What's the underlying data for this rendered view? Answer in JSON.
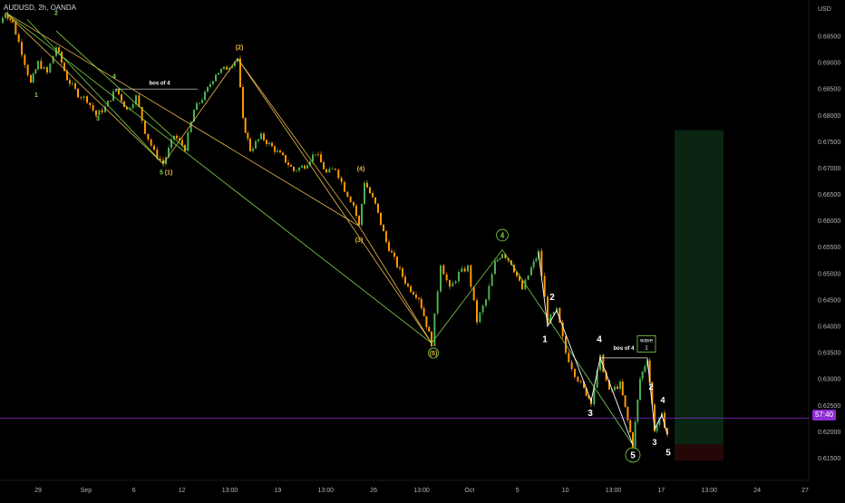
{
  "symbol": "AUDUSD, 2h, OANDA",
  "currency": "USD",
  "current_price_label": "57:40",
  "colors": {
    "background": "#000000",
    "bull": "#4caf50",
    "bear": "#ff9800",
    "motive": "#e8b84a",
    "corrective": "#7ed348",
    "subwave": "#ffffff",
    "price_line": "#8e2bd6",
    "target_zone": "#0b2a14",
    "stop_zone": "#2a0808"
  },
  "chart_data": {
    "type": "candlestick",
    "y_axis": {
      "side": "right",
      "range": [
        0.6125,
        0.7005
      ],
      "ticks": [
        "0.69500",
        "0.69000",
        "0.68500",
        "0.68000",
        "0.67500",
        "0.67000",
        "0.66500",
        "0.66000",
        "0.65500",
        "0.65000",
        "0.64500",
        "0.64000",
        "0.63500",
        "0.63000",
        "0.62500",
        "0.62000",
        "0.61500"
      ]
    },
    "x_axis": {
      "ticks": [
        "29",
        "Sep",
        "6",
        "12",
        "13:00",
        "19",
        "13:00",
        "26",
        "13:00",
        "Oct",
        "5",
        "10",
        "13:00",
        "17",
        "13:00",
        "24",
        "27"
      ]
    },
    "grid": false,
    "path": [
      {
        "t": 0,
        "p": 0.6975
      },
      {
        "t": 6,
        "p": 0.6995
      },
      {
        "t": 14,
        "p": 0.6975
      },
      {
        "t": 24,
        "p": 0.692
      },
      {
        "t": 34,
        "p": 0.686
      },
      {
        "t": 42,
        "p": 0.69
      },
      {
        "t": 52,
        "p": 0.688
      },
      {
        "t": 62,
        "p": 0.693
      },
      {
        "t": 74,
        "p": 0.687
      },
      {
        "t": 86,
        "p": 0.684
      },
      {
        "t": 96,
        "p": 0.683
      },
      {
        "t": 106,
        "p": 0.68
      },
      {
        "t": 116,
        "p": 0.6815
      },
      {
        "t": 128,
        "p": 0.685
      },
      {
        "t": 140,
        "p": 0.681
      },
      {
        "t": 150,
        "p": 0.6835
      },
      {
        "t": 160,
        "p": 0.677
      },
      {
        "t": 170,
        "p": 0.673
      },
      {
        "t": 180,
        "p": 0.6708
      },
      {
        "t": 192,
        "p": 0.6762
      },
      {
        "t": 204,
        "p": 0.6738
      },
      {
        "t": 214,
        "p": 0.681
      },
      {
        "t": 226,
        "p": 0.684
      },
      {
        "t": 238,
        "p": 0.688
      },
      {
        "t": 250,
        "p": 0.689
      },
      {
        "t": 262,
        "p": 0.6908
      },
      {
        "t": 268,
        "p": 0.679
      },
      {
        "t": 276,
        "p": 0.6735
      },
      {
        "t": 288,
        "p": 0.676
      },
      {
        "t": 300,
        "p": 0.674
      },
      {
        "t": 312,
        "p": 0.672
      },
      {
        "t": 324,
        "p": 0.6695
      },
      {
        "t": 336,
        "p": 0.6705
      },
      {
        "t": 348,
        "p": 0.673
      },
      {
        "t": 360,
        "p": 0.669
      },
      {
        "t": 370,
        "p": 0.67
      },
      {
        "t": 380,
        "p": 0.666
      },
      {
        "t": 390,
        "p": 0.663
      },
      {
        "t": 396,
        "p": 0.659
      },
      {
        "t": 402,
        "p": 0.6675
      },
      {
        "t": 414,
        "p": 0.663
      },
      {
        "t": 426,
        "p": 0.656
      },
      {
        "t": 438,
        "p": 0.6515
      },
      {
        "t": 450,
        "p": 0.6475
      },
      {
        "t": 462,
        "p": 0.6455
      },
      {
        "t": 476,
        "p": 0.6368
      },
      {
        "t": 486,
        "p": 0.652
      },
      {
        "t": 496,
        "p": 0.647
      },
      {
        "t": 506,
        "p": 0.65
      },
      {
        "t": 516,
        "p": 0.6512
      },
      {
        "t": 526,
        "p": 0.641
      },
      {
        "t": 536,
        "p": 0.645
      },
      {
        "t": 546,
        "p": 0.652
      },
      {
        "t": 554,
        "p": 0.654
      },
      {
        "t": 564,
        "p": 0.652
      },
      {
        "t": 576,
        "p": 0.647
      },
      {
        "t": 586,
        "p": 0.651
      },
      {
        "t": 594,
        "p": 0.654
      },
      {
        "t": 604,
        "p": 0.641
      },
      {
        "t": 614,
        "p": 0.643
      },
      {
        "t": 624,
        "p": 0.635
      },
      {
        "t": 634,
        "p": 0.631
      },
      {
        "t": 644,
        "p": 0.628
      },
      {
        "t": 652,
        "p": 0.6258
      },
      {
        "t": 662,
        "p": 0.634
      },
      {
        "t": 672,
        "p": 0.6275
      },
      {
        "t": 684,
        "p": 0.629
      },
      {
        "t": 698,
        "p": 0.6175
      },
      {
        "t": 706,
        "p": 0.63
      },
      {
        "t": 714,
        "p": 0.634
      },
      {
        "t": 722,
        "p": 0.6205
      },
      {
        "t": 730,
        "p": 0.623
      },
      {
        "t": 736,
        "p": 0.6195
      }
    ],
    "wave_lines": [
      {
        "kind": "motive",
        "points": [
          [
            6,
            0.6995
          ],
          [
            180,
            0.6708
          ],
          [
            262,
            0.6908
          ],
          [
            396,
            0.659
          ],
          [
            476,
            0.6368
          ]
        ]
      },
      {
        "kind": "motive",
        "points": [
          [
            6,
            0.6995
          ],
          [
            396,
            0.659
          ]
        ]
      },
      {
        "kind": "motive",
        "points": [
          [
            262,
            0.6908
          ],
          [
            476,
            0.6368
          ]
        ]
      },
      {
        "kind": "corrective",
        "points": [
          [
            6,
            0.6995
          ],
          [
            476,
            0.6368
          ],
          [
            554,
            0.6545
          ],
          [
            698,
            0.6175
          ]
        ]
      },
      {
        "kind": "corrective",
        "points": [
          [
            30,
            0.6982
          ],
          [
            180,
            0.6708
          ]
        ]
      },
      {
        "kind": "corrective",
        "points": [
          [
            62,
            0.696
          ],
          [
            206,
            0.6735
          ]
        ]
      },
      {
        "kind": "subwave",
        "points": [
          [
            594,
            0.654
          ],
          [
            604,
            0.64
          ],
          [
            614,
            0.643
          ],
          [
            652,
            0.6258
          ],
          [
            662,
            0.634
          ],
          [
            698,
            0.6175
          ]
        ]
      },
      {
        "kind": "subwave",
        "points": [
          [
            714,
            0.634
          ],
          [
            722,
            0.6205
          ],
          [
            730,
            0.6232
          ],
          [
            736,
            0.6195
          ]
        ]
      }
    ],
    "hlines": [
      {
        "name": "bos-of-4-upper",
        "from": 128,
        "to": 218,
        "price": 0.685,
        "color": "#e8e8e8"
      },
      {
        "name": "bos-of-4-lower",
        "from": 662,
        "to": 714,
        "price": 0.634,
        "color": "#e8e8e8"
      },
      {
        "name": "current-price-line",
        "from": 0,
        "to": 892,
        "price": 0.6226,
        "color": "#8e2bd6"
      }
    ],
    "zones": [
      {
        "name": "target-zone",
        "from": 744,
        "to": 798,
        "top": 0.6772,
        "bottom": 0.6176,
        "kind": "target"
      },
      {
        "name": "stop-zone",
        "from": 744,
        "to": 798,
        "top": 0.6176,
        "bottom": 0.6145,
        "kind": "stop"
      }
    ],
    "labels": [
      {
        "text": "1",
        "t": 40,
        "p": 0.6835,
        "color": "#7ed348",
        "size": 7
      },
      {
        "text": "2",
        "t": 62,
        "p": 0.699,
        "color": "#7ed348",
        "size": 7
      },
      {
        "text": "3",
        "t": 108,
        "p": 0.679,
        "color": "#7ed348",
        "size": 7
      },
      {
        "text": "4",
        "t": 126,
        "p": 0.687,
        "color": "#7ed348",
        "size": 7
      },
      {
        "text": "5",
        "t": 178,
        "p": 0.6688,
        "color": "#7ed348",
        "size": 7
      },
      {
        "text": "bos of 4",
        "t": 176,
        "p": 0.6858,
        "color": "#ffffff",
        "size": 6
      },
      {
        "text": "(1)",
        "t": 186,
        "p": 0.6688,
        "color": "#e8b84a",
        "size": 7
      },
      {
        "text": "(2)",
        "t": 264,
        "p": 0.6925,
        "color": "#e8b84a",
        "size": 7
      },
      {
        "text": "(3)",
        "t": 396,
        "p": 0.656,
        "color": "#e8b84a",
        "size": 7
      },
      {
        "text": "(4)",
        "t": 398,
        "p": 0.6695,
        "color": "#e8b84a",
        "size": 7
      },
      {
        "text": "(5)",
        "t": 478,
        "p": 0.6345,
        "color": "#e8b84a",
        "size": 7,
        "ring": "#7ed348"
      },
      {
        "text": "4",
        "t": 554,
        "p": 0.6568,
        "color": "#7ed348",
        "size": 8,
        "ring": "#7ed348"
      },
      {
        "text": "1",
        "t": 601,
        "p": 0.637,
        "color": "#ffffff",
        "size": 10
      },
      {
        "text": "2",
        "t": 609,
        "p": 0.645,
        "color": "#ffffff",
        "size": 10
      },
      {
        "text": "3",
        "t": 651,
        "p": 0.623,
        "color": "#ffffff",
        "size": 10
      },
      {
        "text": "4",
        "t": 661,
        "p": 0.637,
        "color": "#ffffff",
        "size": 10
      },
      {
        "text": "bos of 4",
        "t": 688,
        "p": 0.6355,
        "color": "#ffffff",
        "size": 6
      },
      {
        "text": "5",
        "t": 698,
        "p": 0.615,
        "color": "#ffffff",
        "size": 10,
        "ring": "#7ed348"
      },
      {
        "text": "2",
        "t": 718,
        "p": 0.628,
        "color": "#ffffff",
        "size": 9
      },
      {
        "text": "3",
        "t": 722,
        "p": 0.6175,
        "color": "#ffffff",
        "size": 9
      },
      {
        "text": "4",
        "t": 731,
        "p": 0.6255,
        "color": "#ffffff",
        "size": 9
      },
      {
        "text": "5",
        "t": 737,
        "p": 0.6155,
        "color": "#ffffff",
        "size": 10
      }
    ],
    "boxes": [
      {
        "lines": [
          "wave",
          "1"
        ],
        "t": 713,
        "p": 0.6365,
        "color": "#ffffff",
        "border": "#7ed348"
      }
    ]
  }
}
